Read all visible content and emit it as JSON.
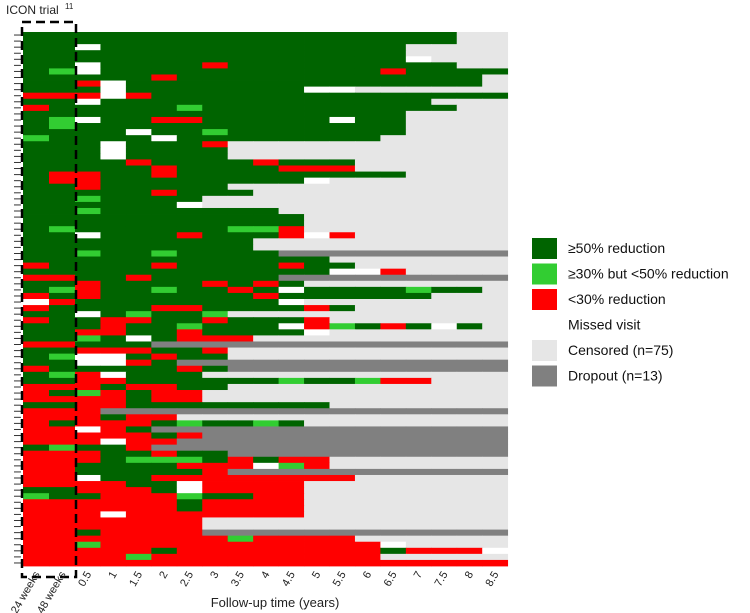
{
  "chart_data": {
    "type": "heatmap",
    "title": "ICON trial",
    "title_superscript": "11",
    "xlabel": "Follow-up time (years)",
    "ylabel": "",
    "x_ticks": [
      "24 weeks",
      "48 weeks",
      "0.5",
      "1",
      "1.5",
      "2",
      "2.5",
      "3",
      "3.5",
      "4",
      "4.5",
      "5",
      "5.5",
      "6",
      "6.5",
      "7",
      "7.5",
      "8",
      "8.5"
    ],
    "legend": [
      {
        "key": "D",
        "label": "≥50% reduction",
        "color": "#006400"
      },
      {
        "key": "L",
        "label": "≥30% but <50% reduction",
        "color": "#32cd32"
      },
      {
        "key": "R",
        "label": "<30% reduction",
        "color": "#ff0000"
      },
      {
        "key": "W",
        "label": "Missed visit",
        "color": "#ffffff"
      },
      {
        "key": "C",
        "label": "Censored (n=75)",
        "color": "#e6e6e6"
      },
      {
        "key": "G",
        "label": "Dropout (n=13)",
        "color": "#808080"
      }
    ],
    "row_count": 88,
    "column_count": 19,
    "rows": [
      "DDDDDDDDDDDDDDDDDCC",
      "DDDDDDDDDDDDDDDDDCC",
      "DDWDDDDDDDDDDDDCCCC",
      "DDDDDDDDDDDDDDDCCCC",
      "DDDDDDDDDDDDDDDWCCC",
      "DDWDDDDRDDDDDDDDDCC",
      "DLWDDDDDDDDDDDRDDDD",
      "DDDDDRDDDDDDDDDDDDC",
      "DDRWDDDDDDDDDDDDDDC",
      "DDDWDDDDDDDWWCCCCCC",
      "RRRWRDDDDDDDDDDDDDD",
      "DDWDDDDDDDDDDDDDCCC",
      "RDDDDDLDDDDDDDDDDCC",
      "DDDDDDDDDDDDDDDCCCC",
      "DLWDDRRDDDDDWDDCCCC",
      "DLDDDDDDDDDDDDDCCCC",
      "DDDDWDDLDDDDDDDCCCC",
      "LDDDDWDDDDDDDDCCCCC",
      "DDDWDDDRCCCCCCCCCCC",
      "DDDWDDDDCCCCCCCCCCC",
      "DDDWDDDDCCCCCCCCCCC",
      "DDDDRDDDDRDDDCCCCCC",
      "DDDDDRDDDDRRRCCCCCC",
      "DRRDDRDDDDDDDDDCCCC",
      "DRRDDDDDDDDWCCCCCCC",
      "DDRDDDDDCCCCCCCCCCC",
      "DDDDDRDDDCCCCCCCCCC",
      "DDLDDDDCCCCCCCCCCCC",
      "DDDDDDWCCCCCCCCCCCC",
      "DDLDDDDDDDCCCCCCCCC",
      "DDDDDDDDDDDCCCCCCCC",
      "DDDDDDDDDDDCCCCCCCC",
      "DLDDDDDDLLRCCCCCCCC",
      "DDWDDDRDDDRWRCCCCCC",
      "DDDDDDDDDCCCCCCCCCC",
      "DDDDDDDDDCCCCCCCCCC",
      "DDLDDLDDDDGGGGGGGGG",
      "DDDDDDDDDDDDCCCCCCC",
      "RDDDDRDDDDRDDCCCCCC",
      "DDDDDDDDDDDDWWRCCCC",
      "RRDDRDDDDDGGGGGGGGG",
      "DDRDDDDRDRDCCCCCCCC",
      "DLRDDLDDRDWDDDDLDDC",
      "RDRDDDDDDRDDDDDDCCC",
      "WRDDDDDDDDWCCCCCCCC",
      "RDDDDRRDDDDRDCCCCCC",
      "DDWDLDDLCCCCCCCCCCC",
      "RDDRRDDRDDDRCCCCCCC",
      "DDDRDDLDDDWRLDRDWDC",
      "DDRRDDRDDDDWCCCCCCC",
      "DDLDWDRRRCCCCCCCCCC",
      "RRDDDGGGGGGGGGGGGGG",
      "DDRRRDDRCCCCCCCCCCC",
      "DLWWDRDDCCCCCCCCCCC",
      "DDWWRDGGGGGGGGGGGGG",
      "RDDDDDRDGGGGGGGGGGG",
      "DLRWDDDCCCCCCCCCCCC",
      "DDRRDDDDDDLDDLRRCCC",
      "RRRDRRDDCCCCCCCCCCC",
      "RDLRDRRCCCCCCCCCCCC",
      "RRRRDRRCCCCCCCCCCCC",
      "DDRRDDDDDDDDCCCCCCC",
      "RRRGGGGGGGGGGGGGGGG",
      "RRRDRRCCCCCCCCCCCCC",
      "RDRRRDLDDLDCCCCCCCC",
      "RRWRDGGGGGGGGGGGGGG",
      "RRRRRDRGGGGGGGGGGGG",
      "RRRWRRGGGGGGGGGGGGG",
      "DLDDRGGGGGGGGGGGGGG",
      "RRRDDRDDGGGGGGGGGGG",
      "RRRDLLLDRDRRCCCCCCC",
      "RRDDDDRRRWLRCCCCCCC",
      "RRDDDDDRGGGGGGGGGGG",
      "RRWDDRRRRRRRRCCCCCC",
      "RRRRDDWRRRRCCCCCCCC",
      "DDRRRDWRRRRCCCCCCCC",
      "LDDRRRLDDRRCCCCCCCC",
      "RRRRRRDRRRRCCCCCCCC",
      "RRRRRRDRRRRCCCCCCCC",
      "RRRWRRRRRRRCCCCCCCC",
      "RRRRRRRCCCCCCCCCCCC",
      "RRRRRRRCCCCCCCCCCCC",
      "RRDRRRRGGGGGGGGGGGG",
      "RRRRRRRRLRRRRCCCCCC",
      "RRLRRRRRRRRRRRWCCCC",
      "RRRRRDRRRRRRRRDRRRW",
      "RRRRLRRRRRRRRRCCCCC",
      "RRRRRRRRRRRRRRRRRRR"
    ]
  }
}
